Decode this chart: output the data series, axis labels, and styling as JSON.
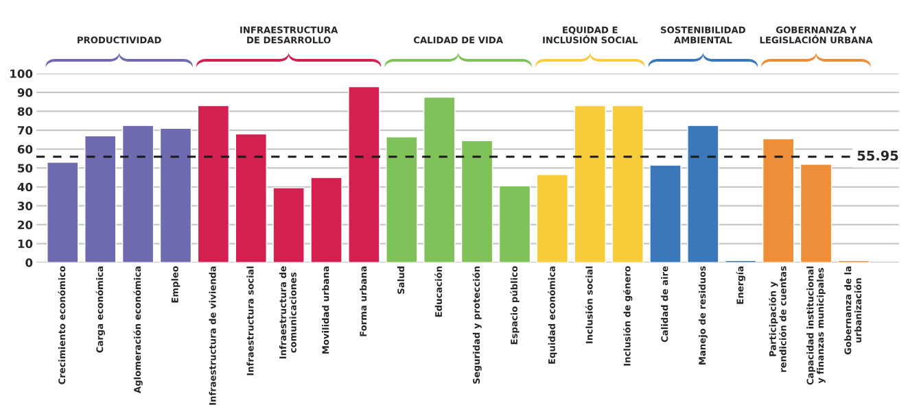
{
  "chart_data": {
    "type": "bar",
    "categories": [
      "Crecimiento económico",
      "Carga económica",
      "Aglomeración económica",
      "Empleo",
      "Infraestructura de vivienda",
      "Infraestructura social",
      "Infraestructura de\ncomunicaciones",
      "Movilidad urbana",
      "Forma urbana",
      "Salud",
      "Educación",
      "Seguridad y protección",
      "Espacio público",
      "Equidad económica",
      "Inclusión social",
      "Inclusión de género",
      "Calidad de aire",
      "Manejo de residuos",
      "Energía",
      "Participación y\nrendición de cuentas",
      "Capacidad institucional\ny finanzas municipales",
      "Gobernanza de la\nurbanización"
    ],
    "values": [
      53,
      67,
      72.5,
      71,
      83,
      68,
      39.5,
      45,
      93,
      66.5,
      87.5,
      64.5,
      40.5,
      46.5,
      83,
      83,
      51.5,
      72.5,
      1,
      65.5,
      52,
      1
    ],
    "colors": [
      "#6f6bb0",
      "#6f6bb0",
      "#6f6bb0",
      "#6f6bb0",
      "#d42050",
      "#d42050",
      "#d42050",
      "#d42050",
      "#d42050",
      "#80c25a",
      "#80c25a",
      "#80c25a",
      "#80c25a",
      "#f9cc3c",
      "#f9cc3c",
      "#f9cc3c",
      "#3a78b9",
      "#3a78b9",
      "#3a78b9",
      "#ef8e38",
      "#ef8e38",
      "#ef8e38"
    ],
    "ylim": [
      0,
      100
    ],
    "yticks": [
      0,
      10,
      20,
      30,
      40,
      50,
      60,
      70,
      80,
      90,
      100
    ],
    "grid": "y",
    "ref_lines": [
      {
        "axis": "y",
        "value": 55.95,
        "label": "55.95",
        "color": "#1a1a1a",
        "line_style": "dashed"
      }
    ],
    "annotations": [
      "PRODUCTIVIDAD",
      "INFRAESTRUCTURA\nDE DESARROLLO",
      "CALIDAD DE VIDA",
      "EQUIDAD E\nINCLUSIÓN SOCIAL",
      "SOSTENIBILIDAD\nAMBIENTAL",
      "GOBERNANZA Y\nLEGISLACIÓN URBANA"
    ]
  }
}
